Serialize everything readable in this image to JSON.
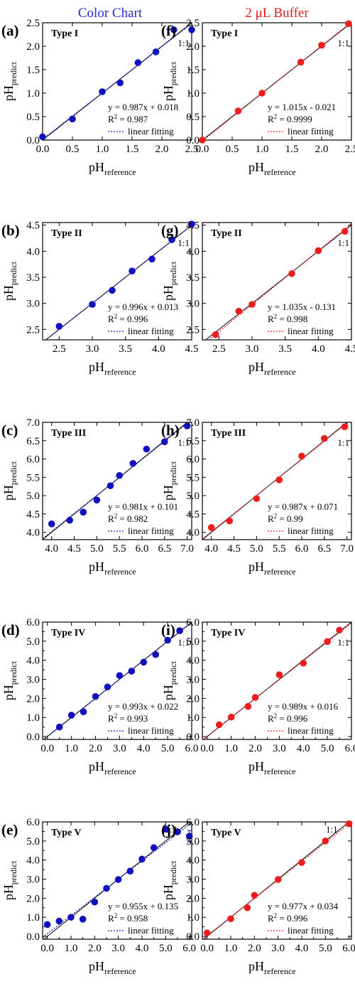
{
  "titles": {
    "left": "Color Chart",
    "right": "2 μL Buffer"
  },
  "axis_labels": {
    "x_main": "pH",
    "x_sub": "reference",
    "y_main": "pH",
    "y_sub": "predict"
  },
  "colors": {
    "blue": "#1010c0",
    "red": "#ee1c1c",
    "title_blue": "#2a2ad0",
    "title_red": "#e41a1a"
  },
  "chart_data": [
    {
      "panel": "(a)",
      "type": "scatter",
      "label": "Type I",
      "color": "blue",
      "xlim": [
        0,
        2.5
      ],
      "ylim": [
        0,
        2.5
      ],
      "ticks": [
        "0.0",
        "0.5",
        "1.0",
        "1.5",
        "2.0",
        "2.5"
      ],
      "tick_values": [
        0,
        0.5,
        1,
        1.5,
        2,
        2.5
      ],
      "x": [
        0.0,
        0.5,
        1.0,
        1.3,
        1.6,
        1.9,
        2.2,
        2.5
      ],
      "y": [
        0.07,
        0.45,
        1.03,
        1.22,
        1.65,
        1.88,
        2.35,
        2.35
      ],
      "equation": "y = 0.987x + 0.018",
      "r2_label": "R",
      "r2_value": " = 0.987",
      "slope": 0.987,
      "intercept": 0.018,
      "legend": "linear fitting",
      "ref": "1:1"
    },
    {
      "panel": "(f)",
      "type": "scatter",
      "label": "Type I",
      "color": "red",
      "xlim": [
        0,
        2.5
      ],
      "ylim": [
        0,
        2.5
      ],
      "ticks": [
        "0.0",
        "0.5",
        "1.0",
        "1.5",
        "2.0",
        "2.5"
      ],
      "tick_values": [
        0,
        0.5,
        1,
        1.5,
        2,
        2.5
      ],
      "x": [
        0.0,
        0.6,
        1.0,
        1.65,
        2.0,
        2.45
      ],
      "y": [
        0.0,
        0.62,
        1.0,
        1.66,
        2.02,
        2.48
      ],
      "equation": "y = 1.015x - 0.021",
      "r2_label": "R",
      "r2_value": " = 0.9999",
      "slope": 1.015,
      "intercept": -0.021,
      "legend": "linear fitting",
      "ref": "1:1"
    },
    {
      "panel": "(b)",
      "type": "scatter",
      "label": "Type II",
      "color": "blue",
      "xlim": [
        2.25,
        4.5
      ],
      "ylim": [
        2.3,
        4.55
      ],
      "ticks": [
        "2.5",
        "3.0",
        "3.5",
        "4.0",
        "4.5"
      ],
      "tick_values": [
        2.5,
        3,
        3.5,
        4,
        4.5
      ],
      "x": [
        2.5,
        3.0,
        3.3,
        3.6,
        3.9,
        4.2,
        4.5
      ],
      "y": [
        2.56,
        2.98,
        3.25,
        3.62,
        3.85,
        4.22,
        4.52
      ],
      "equation": "y = 0.996x + 0.013",
      "r2_label": "R",
      "r2_value": " = 0.996",
      "slope": 0.996,
      "intercept": 0.013,
      "legend": "linear fitting",
      "ref": "1:1"
    },
    {
      "panel": "(g)",
      "type": "scatter",
      "label": "Type II",
      "color": "red",
      "xlim": [
        2.25,
        4.5
      ],
      "ylim": [
        2.3,
        4.55
      ],
      "ticks": [
        "2.5",
        "3.0",
        "3.5",
        "4.0",
        "4.5"
      ],
      "tick_values": [
        2.5,
        3,
        3.5,
        4,
        4.5
      ],
      "x": [
        2.45,
        2.8,
        3.0,
        3.6,
        4.0,
        4.4
      ],
      "y": [
        2.4,
        2.85,
        2.98,
        3.57,
        4.01,
        4.38
      ],
      "equation": "y = 1.035x - 0.131",
      "r2_label": "R",
      "r2_value": " = 0.998",
      "slope": 1.035,
      "intercept": -0.131,
      "legend": "linear fitting",
      "ref": "1:1"
    },
    {
      "panel": "(c)",
      "type": "scatter",
      "label": "Type III",
      "color": "blue",
      "xlim": [
        3.8,
        7.1
      ],
      "ylim": [
        3.8,
        7.0
      ],
      "ticks": [
        "4.0",
        "4.5",
        "5.0",
        "5.5",
        "6.0",
        "6.5",
        "7.0"
      ],
      "tick_values": [
        4,
        4.5,
        5,
        5.5,
        6,
        6.5,
        7
      ],
      "x": [
        4.0,
        4.4,
        4.7,
        5.0,
        5.3,
        5.5,
        5.8,
        6.1,
        6.5,
        7.0
      ],
      "y": [
        4.23,
        4.33,
        4.55,
        4.88,
        5.27,
        5.55,
        5.88,
        6.27,
        6.47,
        6.9
      ],
      "equation": "y = 0.981x + 0.101",
      "r2_label": "R",
      "r2_value": " = 0.982",
      "slope": 0.981,
      "intercept": 0.101,
      "legend": "linear fitting",
      "ref": "1:1"
    },
    {
      "panel": "(h)",
      "type": "scatter",
      "label": "Type III",
      "color": "red",
      "xlim": [
        3.8,
        7.1
      ],
      "ylim": [
        3.8,
        7.0
      ],
      "ticks": [
        "4.0",
        "4.5",
        "5.0",
        "5.5",
        "6.0",
        "6.5",
        "7.0"
      ],
      "tick_values": [
        4,
        4.5,
        5,
        5.5,
        6,
        6.5,
        7
      ],
      "x": [
        4.0,
        4.4,
        5.0,
        5.5,
        6.0,
        6.5,
        6.95
      ],
      "y": [
        4.13,
        4.31,
        4.92,
        5.43,
        6.08,
        6.56,
        6.88
      ],
      "equation": "y = 0.987x + 0.071",
      "r2_label": "R",
      "r2_value": " = 0.99",
      "slope": 0.987,
      "intercept": 0.071,
      "legend": "linear fitting",
      "ref": "1:1"
    },
    {
      "panel": "(d)",
      "type": "scatter",
      "label": "Type IV",
      "color": "blue",
      "xlim": [
        -0.2,
        6.0
      ],
      "ylim": [
        -0.15,
        6.0
      ],
      "ticks": [
        "0.0",
        "1.0",
        "2.0",
        "3.0",
        "4.0",
        "5.0",
        "6.0"
      ],
      "tick_values": [
        0,
        1,
        2,
        3,
        4,
        5,
        6
      ],
      "minor": 0.5,
      "x": [
        0.5,
        1.0,
        1.5,
        2.0,
        2.5,
        3.0,
        3.5,
        4.0,
        4.5,
        5.0,
        5.5
      ],
      "y": [
        0.5,
        1.12,
        1.3,
        2.1,
        2.6,
        3.2,
        3.43,
        3.9,
        4.3,
        5.05,
        5.55
      ],
      "equation": "y = 0.993x + 0.022",
      "r2_label": "R",
      "r2_value": " = 0.993",
      "slope": 0.993,
      "intercept": 0.022,
      "legend": "linear fitting",
      "ref": "1:1"
    },
    {
      "panel": "(i)",
      "type": "scatter",
      "label": "Type IV",
      "color": "red",
      "xlim": [
        -0.2,
        6.0
      ],
      "ylim": [
        -0.15,
        6.0
      ],
      "ticks": [
        "0.0",
        "1.0",
        "2.0",
        "3.0",
        "4.0",
        "5.0",
        "6.0"
      ],
      "tick_values": [
        0,
        1,
        2,
        3,
        4,
        5,
        6
      ],
      "minor": 0.5,
      "x": [
        0.5,
        1.0,
        1.7,
        2.0,
        3.0,
        4.0,
        5.0,
        5.5
      ],
      "y": [
        0.62,
        1.02,
        1.58,
        2.05,
        3.24,
        3.85,
        4.98,
        5.58
      ],
      "equation": "y = 0.989x + 0.016",
      "r2_label": "R",
      "r2_value": " = 0.996",
      "slope": 0.989,
      "intercept": 0.016,
      "legend": "linear fitting",
      "ref": "1:1"
    },
    {
      "panel": "(e)",
      "type": "scatter",
      "label": "Type V",
      "color": "blue",
      "xlim": [
        -0.2,
        6.1
      ],
      "ylim": [
        -0.15,
        6.0
      ],
      "ticks": [
        "0.0",
        "1.0",
        "2.0",
        "3.0",
        "4.0",
        "5.0",
        "6.0"
      ],
      "tick_values": [
        0,
        1,
        2,
        3,
        4,
        5,
        6
      ],
      "minor": 0.5,
      "x": [
        0.0,
        0.5,
        1.0,
        1.5,
        2.0,
        2.5,
        3.0,
        3.5,
        4.0,
        4.5,
        5.0,
        5.5,
        6.0
      ],
      "y": [
        0.62,
        0.8,
        1.0,
        0.9,
        1.8,
        2.52,
        2.98,
        3.42,
        4.05,
        4.65,
        5.62,
        5.48,
        5.25
      ],
      "yerr": [
        0,
        0,
        0,
        0,
        0,
        0,
        0,
        0,
        0,
        0,
        0.15,
        0,
        0.3
      ],
      "equation": "y = 0.955x + 0.135",
      "r2_label": "R",
      "r2_value": " = 0.958",
      "slope": 0.955,
      "intercept": 0.135,
      "legend": "linear fitting",
      "ref": "1:1"
    },
    {
      "panel": "(j)",
      "type": "scatter",
      "label": "Type V",
      "color": "red",
      "xlim": [
        -0.2,
        6.1
      ],
      "ylim": [
        -0.15,
        6.0
      ],
      "ticks": [
        "0.0",
        "1.0",
        "2.0",
        "3.0",
        "4.0",
        "5.0",
        "6.0"
      ],
      "tick_values": [
        0,
        1,
        2,
        3,
        4,
        5,
        6
      ],
      "minor": 0.5,
      "x": [
        0.0,
        1.0,
        1.7,
        2.0,
        3.0,
        4.0,
        5.0,
        6.0
      ],
      "y": [
        0.18,
        0.92,
        1.5,
        2.15,
        2.98,
        3.87,
        5.0,
        5.9
      ],
      "equation": "y = 0.977x + 0.034",
      "r2_label": "R",
      "r2_value": " = 0.996",
      "slope": 0.977,
      "intercept": 0.034,
      "legend": "linear fitting",
      "ref": "1:1"
    }
  ]
}
